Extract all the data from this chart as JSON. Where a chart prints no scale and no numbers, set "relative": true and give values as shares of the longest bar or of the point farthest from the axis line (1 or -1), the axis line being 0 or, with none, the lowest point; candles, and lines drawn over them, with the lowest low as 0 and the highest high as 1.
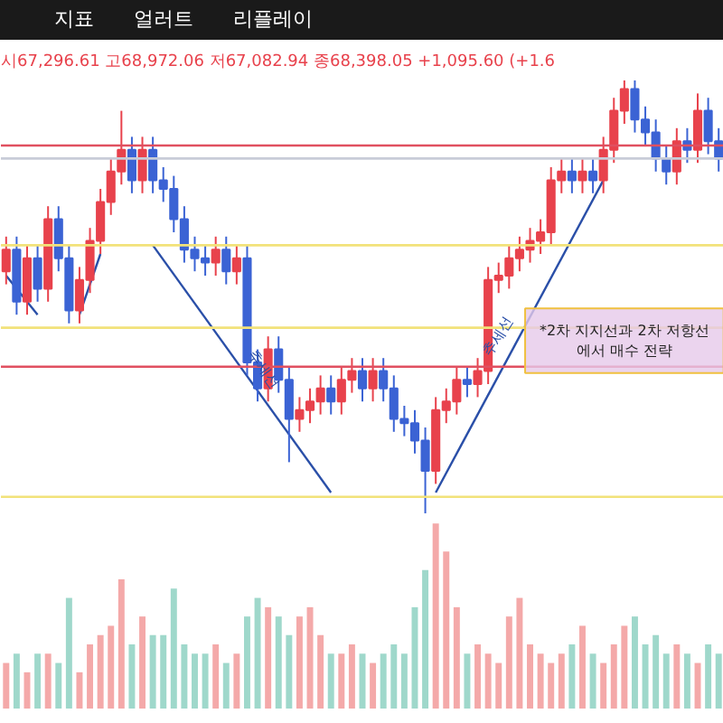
{
  "chart_data": [
    {
      "type": "candlestick",
      "relative": true,
      "title": "시67,296.61 고68,972.06 저67,082.94 종68,398.05 +1,095.60 (+1.6",
      "annotations": [
        "지표",
        "얼러트",
        "리플레이",
        "*2차 지지선과 2차 저항선\n에서 매수 전략"
      ],
      "categories": [
        null,
        null,
        null,
        null,
        null,
        null,
        null,
        null,
        null,
        null,
        null,
        null,
        null,
        null,
        null,
        null,
        null,
        null,
        null,
        null,
        null,
        null,
        null,
        null,
        null,
        null,
        null,
        null,
        null,
        null,
        null,
        null,
        null,
        null,
        null,
        null,
        null,
        null,
        null,
        null,
        null,
        null,
        null,
        null,
        null,
        null,
        null,
        null,
        null,
        null,
        null,
        null,
        null,
        null,
        null,
        null,
        null,
        null,
        null,
        null,
        null,
        null,
        null,
        null,
        null,
        null,
        null,
        null,
        null
      ],
      "ohlc": [
        [
          0.56,
          0.64,
          0.53,
          0.61
        ],
        [
          0.61,
          0.64,
          0.46,
          0.49
        ],
        [
          0.49,
          0.62,
          0.46,
          0.59
        ],
        [
          0.59,
          0.62,
          0.49,
          0.52
        ],
        [
          0.52,
          0.71,
          0.49,
          0.68
        ],
        [
          0.68,
          0.71,
          0.56,
          0.59
        ],
        [
          0.59,
          0.62,
          0.44,
          0.47
        ],
        [
          0.47,
          0.57,
          0.44,
          0.54
        ],
        [
          0.54,
          0.66,
          0.51,
          0.63
        ],
        [
          0.63,
          0.75,
          0.6,
          0.72
        ],
        [
          0.72,
          0.82,
          0.69,
          0.79
        ],
        [
          0.79,
          0.93,
          0.76,
          0.84
        ],
        [
          0.84,
          0.87,
          0.74,
          0.77
        ],
        [
          0.77,
          0.87,
          0.74,
          0.84
        ],
        [
          0.84,
          0.87,
          0.74,
          0.77
        ],
        [
          0.77,
          0.8,
          0.72,
          0.75
        ],
        [
          0.75,
          0.78,
          0.65,
          0.68
        ],
        [
          0.68,
          0.71,
          0.58,
          0.61
        ],
        [
          0.61,
          0.64,
          0.56,
          0.59
        ],
        [
          0.59,
          0.62,
          0.55,
          0.58
        ],
        [
          0.58,
          0.64,
          0.55,
          0.61
        ],
        [
          0.61,
          0.64,
          0.53,
          0.56
        ],
        [
          0.56,
          0.62,
          0.53,
          0.59
        ],
        [
          0.59,
          0.62,
          0.32,
          0.35
        ],
        [
          0.35,
          0.38,
          0.26,
          0.29
        ],
        [
          0.29,
          0.41,
          0.26,
          0.38
        ],
        [
          0.38,
          0.41,
          0.28,
          0.31
        ],
        [
          0.31,
          0.34,
          0.12,
          0.22
        ],
        [
          0.22,
          0.27,
          0.19,
          0.24
        ],
        [
          0.24,
          0.29,
          0.21,
          0.26
        ],
        [
          0.26,
          0.32,
          0.23,
          0.29
        ],
        [
          0.29,
          0.32,
          0.23,
          0.26
        ],
        [
          0.26,
          0.34,
          0.23,
          0.31
        ],
        [
          0.31,
          0.36,
          0.28,
          0.33
        ],
        [
          0.33,
          0.36,
          0.26,
          0.29
        ],
        [
          0.29,
          0.36,
          0.26,
          0.33
        ],
        [
          0.33,
          0.36,
          0.26,
          0.29
        ],
        [
          0.29,
          0.32,
          0.19,
          0.22
        ],
        [
          0.22,
          0.25,
          0.18,
          0.21
        ],
        [
          0.21,
          0.24,
          0.14,
          0.17
        ],
        [
          0.17,
          0.2,
          0,
          0.1
        ],
        [
          0.1,
          0.27,
          0.07,
          0.24
        ],
        [
          0.24,
          0.29,
          0.21,
          0.26
        ],
        [
          0.26,
          0.34,
          0.23,
          0.31
        ],
        [
          0.31,
          0.34,
          0.27,
          0.3
        ],
        [
          0.3,
          0.36,
          0.27,
          0.33
        ],
        [
          0.33,
          0.57,
          0.3,
          0.54
        ],
        [
          0.54,
          0.58,
          0.51,
          0.55
        ],
        [
          0.55,
          0.62,
          0.52,
          0.59
        ],
        [
          0.59,
          0.64,
          0.56,
          0.61
        ],
        [
          0.61,
          0.66,
          0.58,
          0.63
        ],
        [
          0.63,
          0.68,
          0.6,
          0.65
        ],
        [
          0.65,
          0.8,
          0.62,
          0.77
        ],
        [
          0.77,
          0.82,
          0.74,
          0.79
        ],
        [
          0.79,
          0.82,
          0.74,
          0.77
        ],
        [
          0.77,
          0.82,
          0.74,
          0.79
        ],
        [
          0.79,
          0.82,
          0.74,
          0.77
        ],
        [
          0.77,
          0.87,
          0.74,
          0.84
        ],
        [
          0.84,
          0.96,
          0.81,
          0.93
        ],
        [
          0.93,
          1.0,
          0.9,
          0.98
        ],
        [
          0.98,
          1.0,
          0.88,
          0.91
        ],
        [
          0.91,
          0.94,
          0.85,
          0.88
        ],
        [
          0.88,
          0.91,
          0.79,
          0.82
        ],
        [
          0.82,
          0.85,
          0.76,
          0.79
        ],
        [
          0.79,
          0.89,
          0.76,
          0.86
        ],
        [
          0.86,
          0.89,
          0.81,
          0.84
        ],
        [
          0.84,
          0.97,
          0.81,
          0.93
        ],
        [
          0.93,
          0.96,
          0.83,
          0.86
        ],
        [
          0.86,
          0.89,
          0.79,
          0.82
        ]
      ],
      "colors": [
        "#e8424c",
        "#3b63d4",
        "#e8424c",
        "#3b63d4",
        "#e8424c",
        "#3b63d4",
        "#3b63d4",
        "#e8424c",
        "#e8424c",
        "#e8424c",
        "#e8424c",
        "#e8424c",
        "#3b63d4",
        "#e8424c",
        "#3b63d4",
        "#3b63d4",
        "#3b63d4",
        "#3b63d4",
        "#3b63d4",
        "#3b63d4",
        "#e8424c",
        "#3b63d4",
        "#e8424c",
        "#3b63d4",
        "#3b63d4",
        "#e8424c",
        "#3b63d4",
        "#3b63d4",
        "#e8424c",
        "#e8424c",
        "#e8424c",
        "#3b63d4",
        "#e8424c",
        "#e8424c",
        "#3b63d4",
        "#e8424c",
        "#3b63d4",
        "#3b63d4",
        "#3b63d4",
        "#3b63d4",
        "#3b63d4",
        "#e8424c",
        "#e8424c",
        "#e8424c",
        "#3b63d4",
        "#e8424c",
        "#e8424c",
        "#e8424c",
        "#e8424c",
        "#e8424c",
        "#e8424c",
        "#e8424c",
        "#e8424c",
        "#e8424c",
        "#3b63d4",
        "#e8424c",
        "#3b63d4",
        "#e8424c",
        "#e8424c",
        "#e8424c",
        "#3b63d4",
        "#3b63d4",
        "#3b63d4",
        "#3b63d4",
        "#e8424c",
        "#3b63d4",
        "#e8424c",
        "#3b63d4",
        "#3b63d4"
      ],
      "series": [
        {
          "type": "line",
          "color": "#2a4fa8",
          "values": [
            0.55,
            null,
            null,
            0.46,
            null,
            null,
            null,
            null,
            null,
            null,
            null,
            null,
            null,
            null,
            null,
            null,
            null,
            null,
            null,
            null,
            null,
            null,
            null,
            null,
            null,
            null,
            null,
            null,
            null,
            null,
            null,
            null,
            null,
            null,
            null,
            null,
            null,
            null,
            null,
            null,
            null,
            null,
            null,
            null,
            null,
            null,
            null,
            null,
            null,
            null,
            null,
            null,
            null,
            null,
            null,
            null,
            null,
            null,
            null,
            null,
            null,
            null,
            null,
            null,
            null,
            null,
            null,
            null,
            null
          ]
        },
        {
          "type": "line",
          "color": "#2a4fa8",
          "values": [
            null,
            null,
            null,
            null,
            null,
            null,
            null,
            0.46,
            null,
            0.6,
            null,
            null,
            null,
            null,
            null,
            null,
            null,
            null,
            null,
            null,
            null,
            null,
            null,
            null,
            null,
            null,
            null,
            null,
            null,
            null,
            null,
            null,
            null,
            null,
            null,
            null,
            null,
            null,
            null,
            null,
            null,
            null,
            null,
            null,
            null,
            null,
            null,
            null,
            null,
            null,
            null,
            null,
            null,
            null,
            null,
            null,
            null,
            null,
            null,
            null,
            null,
            null,
            null,
            null,
            null,
            null,
            null,
            null,
            null
          ]
        },
        {
          "type": "line",
          "color": "#2a4fa8",
          "name": "추세선",
          "values": [
            null,
            null,
            null,
            null,
            null,
            null,
            null,
            null,
            null,
            null,
            null,
            null,
            null,
            null,
            0.62,
            null,
            null,
            null,
            null,
            null,
            null,
            null,
            null,
            null,
            null,
            null,
            null,
            null,
            null,
            null,
            null,
            0.05,
            null,
            null,
            null,
            null,
            null,
            null,
            null,
            null,
            null,
            null,
            null,
            null,
            null,
            null,
            null,
            null,
            null,
            null,
            null,
            null,
            null,
            null,
            null,
            null,
            null,
            null,
            null,
            null,
            null,
            null,
            null,
            null,
            null,
            null,
            null,
            null,
            null
          ]
        },
        {
          "type": "line",
          "color": "#2a4fa8",
          "name": "추세선",
          "values": [
            null,
            null,
            null,
            null,
            null,
            null,
            null,
            null,
            null,
            null,
            null,
            null,
            null,
            null,
            null,
            null,
            null,
            null,
            null,
            null,
            null,
            null,
            null,
            null,
            null,
            null,
            null,
            null,
            null,
            null,
            null,
            null,
            null,
            null,
            null,
            null,
            null,
            null,
            null,
            null,
            null,
            0.05,
            null,
            null,
            null,
            null,
            null,
            null,
            null,
            null,
            null,
            null,
            null,
            null,
            null,
            null,
            null,
            0.77,
            null,
            null,
            null,
            null,
            null,
            null,
            null,
            null,
            null,
            null,
            null
          ]
        }
      ],
      "ref_lines": [
        {
          "axis": "y",
          "value": 0.85,
          "color": "#e05060"
        },
        {
          "axis": "y",
          "value": 0.82,
          "color": "#c8ccd8"
        },
        {
          "axis": "y",
          "value": 0.62,
          "color": "#f2e27a"
        },
        {
          "axis": "y",
          "value": 0.43,
          "color": "#f2e27a"
        },
        {
          "axis": "y",
          "value": 0.34,
          "color": "#e05060"
        },
        {
          "axis": "y",
          "value": 0.04,
          "color": "#f2e27a"
        }
      ],
      "grid": false
    },
    {
      "type": "bar",
      "relative": true,
      "categories": [
        null,
        null,
        null,
        null,
        null,
        null,
        null,
        null,
        null,
        null,
        null,
        null,
        null,
        null,
        null,
        null,
        null,
        null,
        null,
        null,
        null,
        null,
        null,
        null,
        null,
        null,
        null,
        null,
        null,
        null,
        null,
        null,
        null,
        null,
        null,
        null,
        null,
        null,
        null,
        null,
        null,
        null,
        null,
        null,
        null,
        null,
        null,
        null,
        null,
        null,
        null,
        null,
        null,
        null,
        null,
        null,
        null,
        null,
        null,
        null,
        null,
        null,
        null,
        null,
        null,
        null,
        null,
        null,
        null
      ],
      "values": [
        0.25,
        0.3,
        0.2,
        0.3,
        0.3,
        0.25,
        0.6,
        0.2,
        0.35,
        0.4,
        0.45,
        0.7,
        0.35,
        0.5,
        0.4,
        0.4,
        0.65,
        0.35,
        0.3,
        0.3,
        0.35,
        0.25,
        0.3,
        0.5,
        0.6,
        0.55,
        0.5,
        0.4,
        0.5,
        0.55,
        0.4,
        0.3,
        0.3,
        0.35,
        0.3,
        0.25,
        0.3,
        0.35,
        0.3,
        0.55,
        0.75,
        1.0,
        0.85,
        0.55,
        0.3,
        0.35,
        0.3,
        0.25,
        0.5,
        0.6,
        0.35,
        0.3,
        0.25,
        0.3,
        0.35,
        0.45,
        0.3,
        0.25,
        0.35,
        0.45,
        0.5,
        0.35,
        0.4,
        0.3,
        0.35,
        0.3,
        0.25,
        0.35,
        0.3
      ],
      "colors": [
        "#f4a9a9",
        "#9fd8cb",
        "#f4a9a9",
        "#9fd8cb",
        "#f4a9a9",
        "#9fd8cb",
        "#9fd8cb",
        "#f4a9a9",
        "#f4a9a9",
        "#f4a9a9",
        "#f4a9a9",
        "#f4a9a9",
        "#9fd8cb",
        "#f4a9a9",
        "#9fd8cb",
        "#9fd8cb",
        "#9fd8cb",
        "#9fd8cb",
        "#9fd8cb",
        "#9fd8cb",
        "#f4a9a9",
        "#9fd8cb",
        "#f4a9a9",
        "#9fd8cb",
        "#9fd8cb",
        "#f4a9a9",
        "#9fd8cb",
        "#9fd8cb",
        "#f4a9a9",
        "#f4a9a9",
        "#f4a9a9",
        "#9fd8cb",
        "#f4a9a9",
        "#f4a9a9",
        "#9fd8cb",
        "#f4a9a9",
        "#9fd8cb",
        "#9fd8cb",
        "#9fd8cb",
        "#9fd8cb",
        "#9fd8cb",
        "#f4a9a9",
        "#f4a9a9",
        "#f4a9a9",
        "#9fd8cb",
        "#f4a9a9",
        "#f4a9a9",
        "#f4a9a9",
        "#f4a9a9",
        "#f4a9a9",
        "#f4a9a9",
        "#f4a9a9",
        "#f4a9a9",
        "#f4a9a9",
        "#9fd8cb",
        "#f4a9a9",
        "#9fd8cb",
        "#f4a9a9",
        "#f4a9a9",
        "#f4a9a9",
        "#9fd8cb",
        "#9fd8cb",
        "#9fd8cb",
        "#9fd8cb",
        "#f4a9a9",
        "#9fd8cb",
        "#f4a9a9",
        "#9fd8cb",
        "#9fd8cb"
      ],
      "grid": false
    }
  ]
}
